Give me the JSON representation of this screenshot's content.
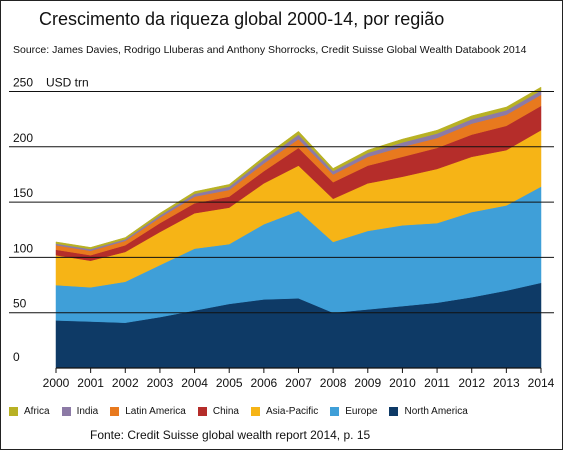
{
  "chart_data": {
    "type": "area",
    "stacked": true,
    "title": "Crescimento da riqueza global 2000-14, por região",
    "source": "Source: James Davies, Rodrigo Lluberas and Anthony Shorrocks, Credit Suisse Global Wealth Databook 2014",
    "ylabel": "USD trn",
    "xlabel": "",
    "ylim": [
      0,
      250
    ],
    "yticks": [
      0,
      50,
      100,
      150,
      200,
      250
    ],
    "grid": true,
    "legend": "bottom",
    "x": [
      "2000",
      "2001",
      "2002",
      "2003",
      "2004",
      "2005",
      "2006",
      "2007",
      "2008",
      "2009",
      "2010",
      "2011",
      "2012",
      "2013",
      "2014"
    ],
    "series": [
      {
        "name": "North America",
        "color": "#0e3a66",
        "values": [
          43,
          42,
          41,
          46,
          52,
          58,
          62,
          63,
          50,
          53,
          56,
          59,
          64,
          70,
          77
        ]
      },
      {
        "name": "Europe",
        "color": "#3f9fd8",
        "values": [
          32,
          31,
          37,
          47,
          56,
          54,
          68,
          79,
          64,
          71,
          73,
          72,
          77,
          77,
          87
        ]
      },
      {
        "name": "Asia-Pacific",
        "color": "#f6b416",
        "values": [
          27,
          24,
          27,
          30,
          32,
          33,
          37,
          41,
          39,
          43,
          44,
          49,
          50,
          50,
          51
        ]
      },
      {
        "name": "China",
        "color": "#b52d2a",
        "values": [
          5,
          5,
          6,
          8,
          9,
          10,
          11,
          16,
          15,
          16,
          18,
          19,
          20,
          22,
          22
        ]
      },
      {
        "name": "Latin America",
        "color": "#e8791e",
        "values": [
          4,
          4,
          4,
          5,
          6,
          6,
          7,
          8,
          7,
          8,
          9,
          9,
          10,
          10,
          10
        ]
      },
      {
        "name": "India",
        "color": "#8c7aa6",
        "values": [
          1.5,
          1.5,
          1.5,
          2,
          2.5,
          3,
          3.5,
          4,
          3,
          3.5,
          4,
          4,
          4,
          4,
          4
        ]
      },
      {
        "name": "Africa",
        "color": "#b8b124",
        "values": [
          1.5,
          1.5,
          1.5,
          2,
          2,
          2,
          2.5,
          3,
          2.5,
          2.5,
          3,
          3,
          3,
          3,
          3
        ]
      }
    ]
  },
  "footnote": "Fonte: Credit Suisse global wealth report 2014, p. 15"
}
